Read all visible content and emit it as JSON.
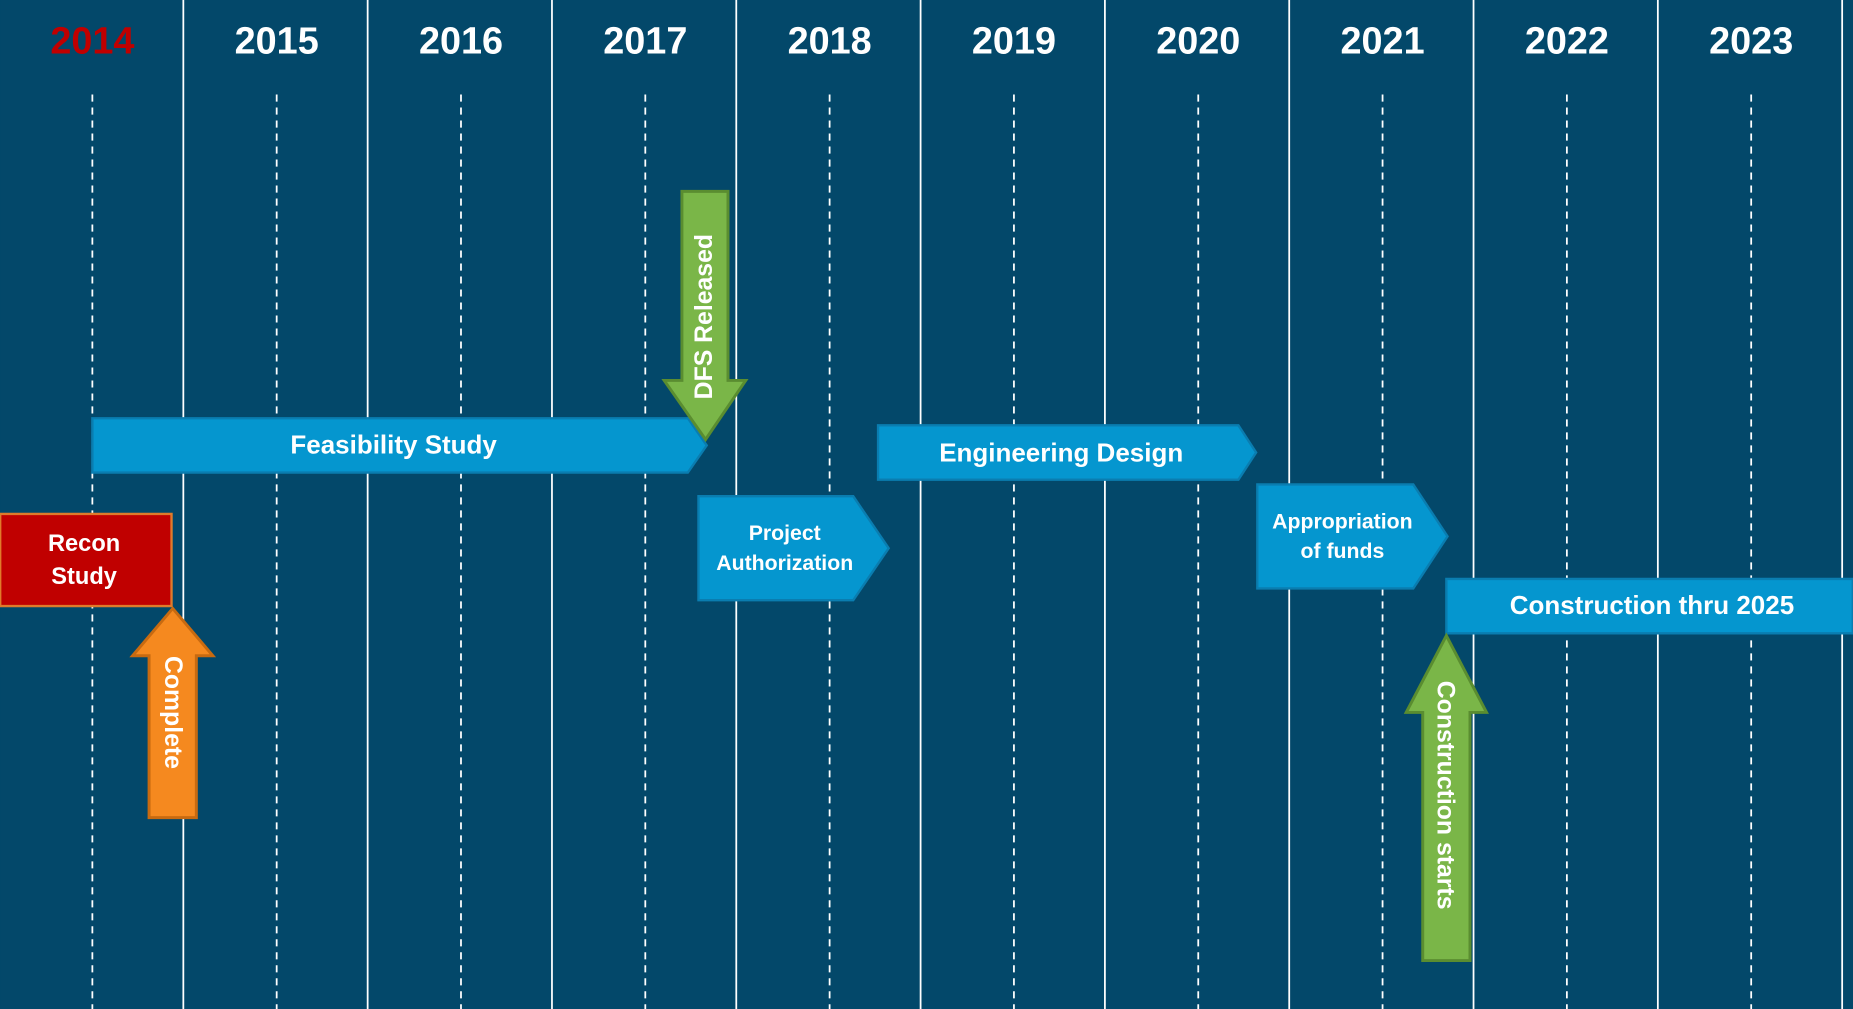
{
  "years": [
    "2014",
    "2015",
    "2016",
    "2017",
    "2018",
    "2019",
    "2020",
    "2021",
    "2022",
    "2023"
  ],
  "phases": [
    {
      "lines": [
        "Feasibility Study"
      ]
    },
    {
      "lines": [
        "Engineering Design"
      ]
    },
    {
      "lines": [
        "Project",
        "Authorization"
      ]
    },
    {
      "lines": [
        "Appropriation",
        "of funds"
      ]
    },
    {
      "lines": [
        "Construction thru 2025"
      ]
    },
    {
      "lines": [
        "Recon",
        "Study"
      ]
    }
  ],
  "milestones": [
    {
      "label": "Complete"
    },
    {
      "label": "DFS Released"
    },
    {
      "label": "Construction starts"
    }
  ]
}
